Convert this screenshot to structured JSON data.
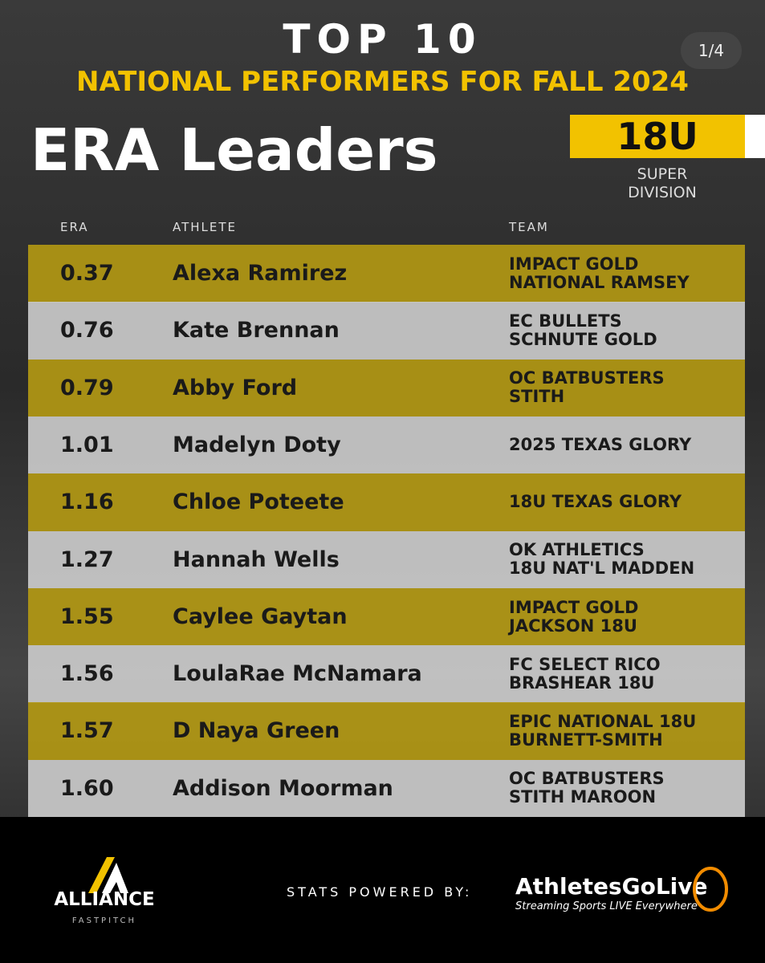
{
  "header": {
    "page_indicator": "1/4",
    "top": "TOP 10",
    "subtitle": "NATIONAL PERFORMERS FOR FALL 2024",
    "title": "ERA Leaders",
    "badge": "18U",
    "division": [
      "SUPER",
      "DIVISION"
    ]
  },
  "table": {
    "columns": [
      "ERA",
      "ATHLETE",
      "TEAM"
    ],
    "rows": [
      [
        "0.37",
        "Alexa Ramirez",
        [
          "IMPACT GOLD",
          "NATIONAL RAMSEY"
        ]
      ],
      [
        "0.76",
        "Kate Brennan",
        [
          "EC BULLETS",
          "SCHNUTE GOLD"
        ]
      ],
      [
        "0.79",
        "Abby Ford",
        [
          "OC BATBUSTERS",
          "STITH"
        ]
      ],
      [
        "1.01",
        "Madelyn Doty",
        [
          "2025 TEXAS GLORY"
        ]
      ],
      [
        "1.16",
        "Chloe Poteete",
        [
          "18U TEXAS GLORY"
        ]
      ],
      [
        "1.27",
        "Hannah Wells",
        [
          "OK ATHLETICS",
          "18U NAT'L MADDEN"
        ]
      ],
      [
        "1.55",
        "Caylee Gaytan",
        [
          "IMPACT GOLD",
          "JACKSON 18U"
        ]
      ],
      [
        "1.56",
        "LoulaRae McNamara",
        [
          "FC SELECT RICO",
          "BRASHEAR 18U"
        ]
      ],
      [
        "1.57",
        "D Naya Green",
        [
          "EPIC NATIONAL 18U",
          "BURNETT-SMITH"
        ]
      ],
      [
        "1.60",
        "Addison Moorman",
        [
          "OC BATBUSTERS",
          "STITH MAROON"
        ]
      ]
    ]
  },
  "footer": {
    "brand": "ALLIANCE",
    "brand_sub": "FASTPITCH",
    "powered": "STATS POWERED BY:",
    "sponsor": "AthletesGoLive",
    "sponsor_tagline": "Streaming Sports LIVE Everywhere"
  }
}
